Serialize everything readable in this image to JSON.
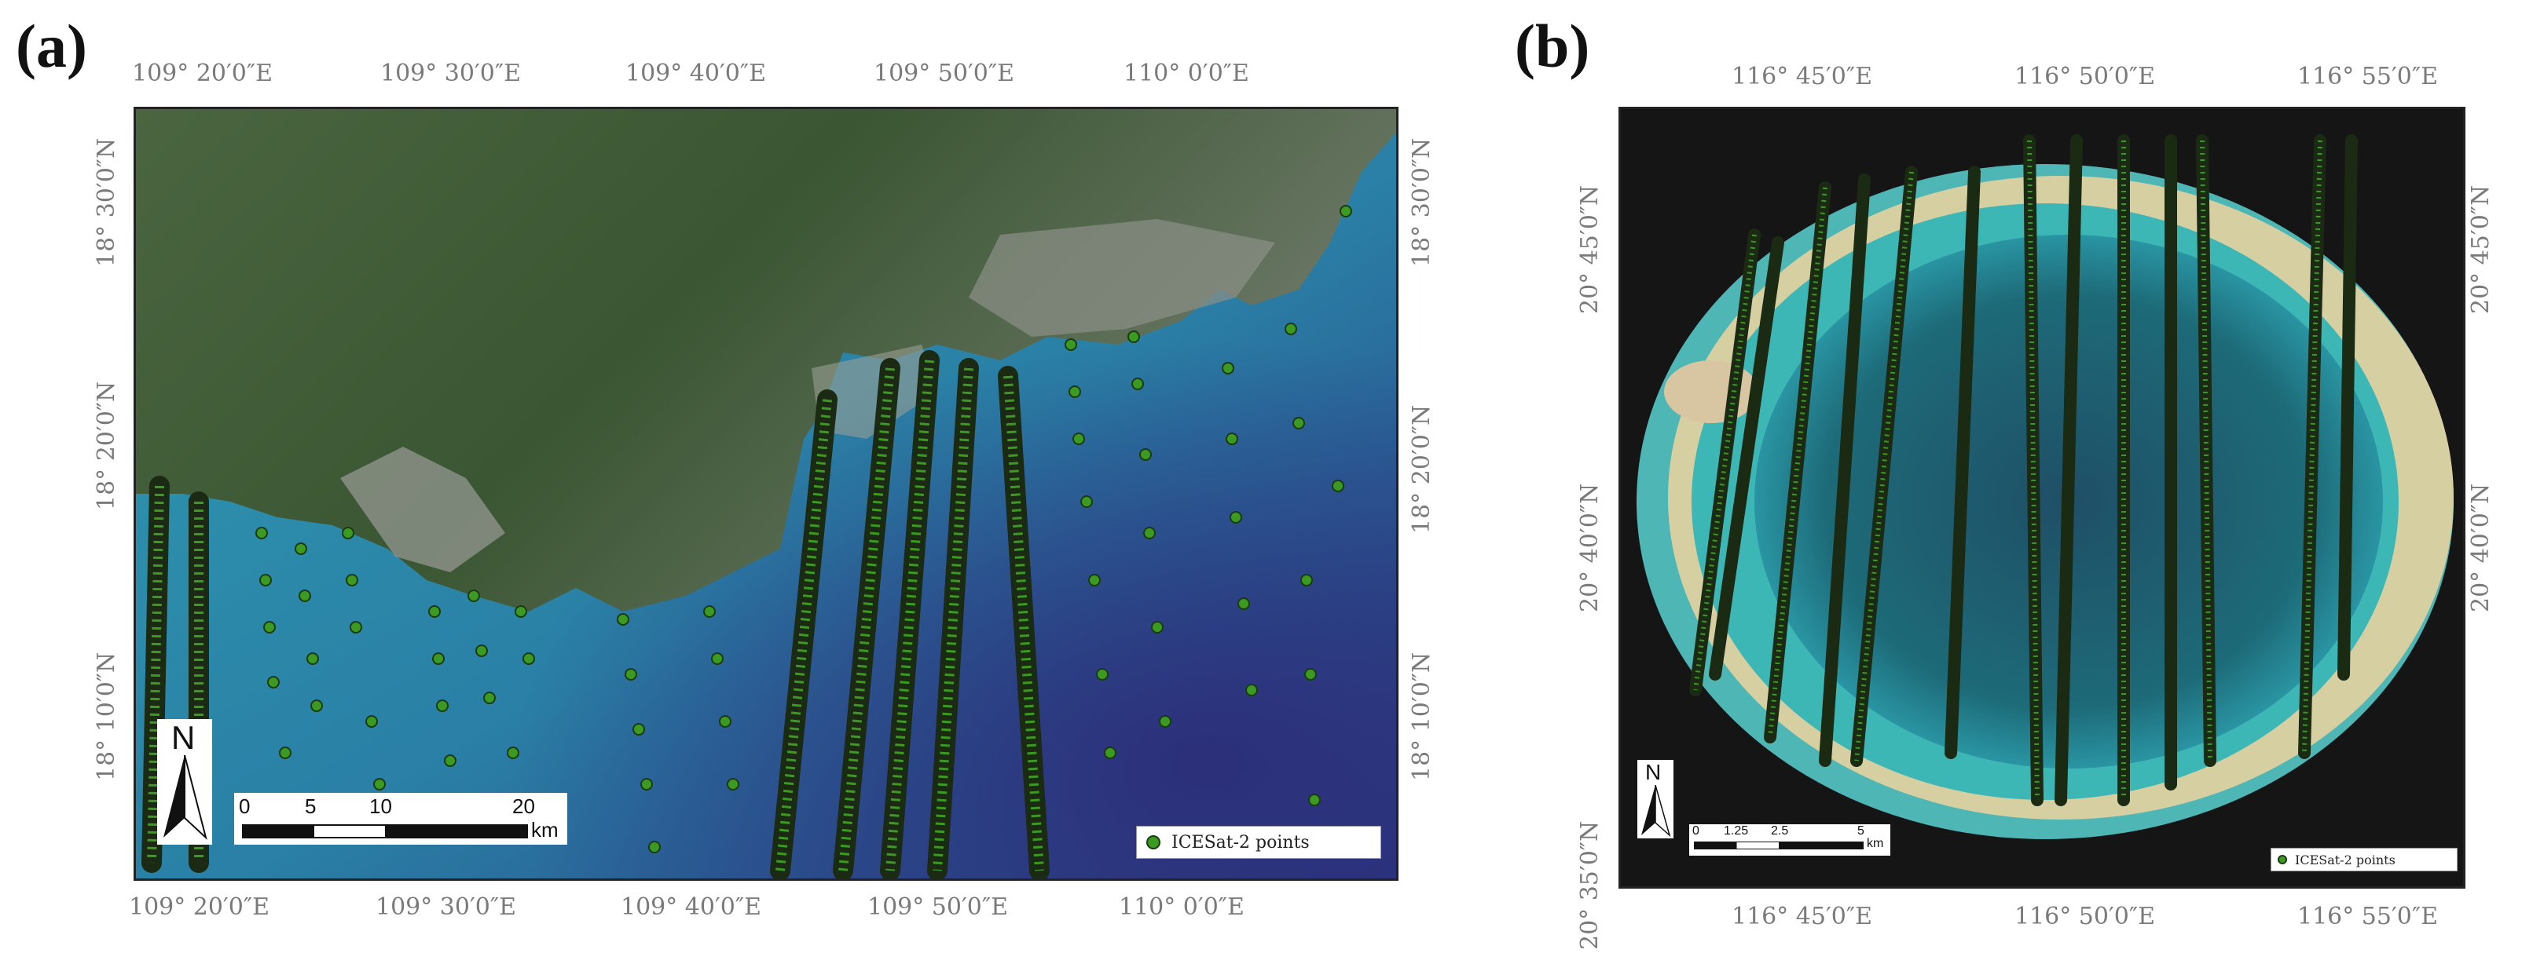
{
  "panel_a": {
    "letter": "(a)",
    "top_ticks": [
      "109° 20′0″E",
      "109° 30′0″E",
      "109° 40′0″E",
      "109° 50′0″E",
      "110° 0′0″E"
    ],
    "bottom_ticks": [
      "109° 20′0″E",
      "109° 30′0″E",
      "109° 40′0″E",
      "109° 50′0″E",
      "110° 0′0″E"
    ],
    "left_ticks": [
      "18° 30′0″N",
      "18° 20′0″N",
      "18° 10′0″N"
    ],
    "right_ticks": [
      "18° 30′0″N",
      "18° 20′0″N",
      "18° 10′0″N"
    ],
    "north_label": "N",
    "scale_labels": [
      "0",
      "5",
      "10",
      "20"
    ],
    "scale_unit": "km",
    "legend_label": "ICESat-2 points"
  },
  "panel_b": {
    "letter": "(b)",
    "top_ticks": [
      "116° 45′0″E",
      "116° 50′0″E",
      "116° 55′0″E"
    ],
    "bottom_ticks": [
      "116° 45′0″E",
      "116° 50′0″E",
      "116° 55′0″E"
    ],
    "left_ticks": [
      "20° 45′0″N",
      "20° 40′0″N",
      "20° 35′0″N"
    ],
    "right_ticks": [
      "20° 45′0″N",
      "20° 40′0″N"
    ],
    "north_label": "N",
    "scale_labels": [
      "0",
      "1.25",
      "2.5",
      "5"
    ],
    "scale_unit": "km",
    "legend_label": "ICESat-2 points"
  },
  "colors": {
    "point_fill": "#3c9a22",
    "point_stroke": "#1a3b10",
    "deep_sea": "#2b3f8a",
    "shallow_sea": "#2d8fa3",
    "land": "#3d5a35",
    "urban": "#8a8f86",
    "reef": "#d8d2a8",
    "lagoon": "#1d6a78"
  }
}
